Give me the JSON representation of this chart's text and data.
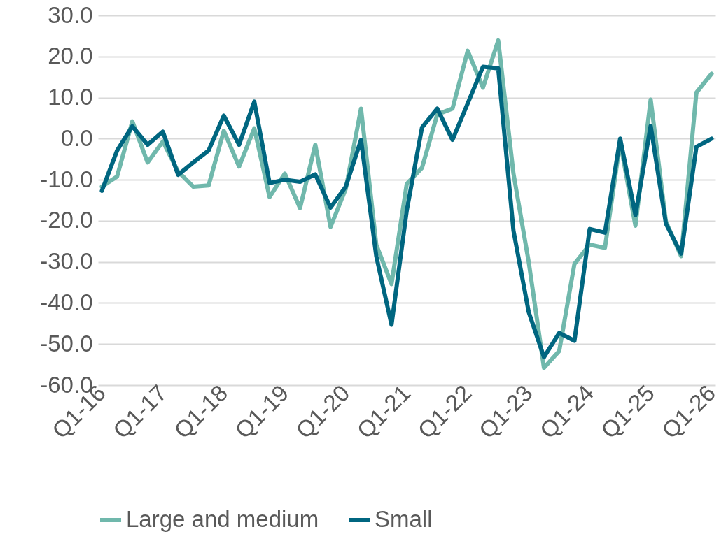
{
  "chart_data": {
    "type": "line",
    "categories": [
      "Q1-16",
      null,
      null,
      null,
      "Q1-17",
      null,
      null,
      null,
      "Q1-18",
      null,
      null,
      null,
      "Q1-19",
      null,
      null,
      null,
      "Q1-20",
      null,
      null,
      null,
      "Q1-21",
      null,
      null,
      null,
      "Q1-22",
      null,
      null,
      null,
      "Q1-23",
      null,
      null,
      null,
      "Q1-24",
      null,
      null,
      null,
      "Q1-25",
      null,
      null,
      null,
      "Q1-26"
    ],
    "series": [
      {
        "name": "Large and medium",
        "color": "#70b8ac",
        "values": [
          -11.7,
          -9.2,
          4.2,
          -5.8,
          -0.7,
          -8.0,
          -11.7,
          -11.4,
          1.9,
          -6.8,
          2.5,
          -14.2,
          -8.5,
          -16.9,
          -1.5,
          -21.5,
          -12.2,
          7.3,
          -25.8,
          -35.4,
          -11.0,
          -7.1,
          5.9,
          7.3,
          21.4,
          12.4,
          23.9,
          -8.5,
          -30.0,
          -55.8,
          -51.7,
          -30.5,
          -25.8,
          -26.6,
          -0.8,
          -21.2,
          9.5,
          -20.2,
          -28.6,
          11.2,
          15.8
        ]
      },
      {
        "name": "Small",
        "color": "#006680",
        "values": [
          -12.7,
          -2.9,
          3.0,
          -1.5,
          1.7,
          -8.8,
          -5.8,
          -2.9,
          5.6,
          -1.5,
          9.0,
          -10.8,
          -10.0,
          -10.5,
          -8.7,
          -16.8,
          -11.7,
          -0.3,
          -28.6,
          -45.3,
          -17.5,
          2.7,
          7.3,
          -0.3,
          8.6,
          17.5,
          17.1,
          -22.4,
          -42.2,
          -53.2,
          -47.3,
          -49.2,
          -22.0,
          -22.9,
          0.0,
          -18.6,
          3.1,
          -20.7,
          -28.0,
          -2.0,
          0.0
        ]
      }
    ],
    "ylim": [
      -60,
      30
    ],
    "yticks": [
      {
        "value": -60,
        "label": "-60.0"
      },
      {
        "value": -50,
        "label": "-50.0"
      },
      {
        "value": -40,
        "label": "-40.0"
      },
      {
        "value": -30,
        "label": "-30.0"
      },
      {
        "value": -20,
        "label": "-20.0"
      },
      {
        "value": -10,
        "label": "-10.0"
      },
      {
        "value": 0,
        "label": "0.0"
      },
      {
        "value": 10,
        "label": "10.0"
      },
      {
        "value": 20,
        "label": "20.0"
      },
      {
        "value": 30,
        "label": "30.0"
      }
    ],
    "grid": "y",
    "legend": "bottom",
    "marker": "none",
    "line_style": "solid"
  }
}
